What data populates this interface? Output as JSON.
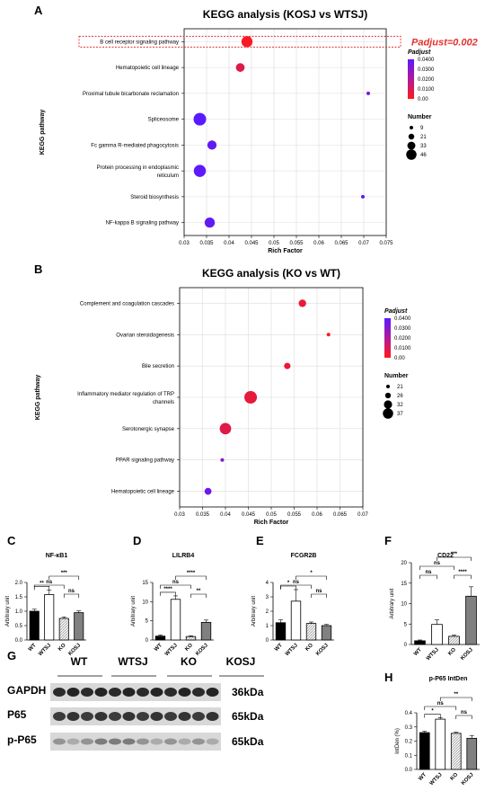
{
  "chart_data": [
    {
      "panel": "A",
      "type": "scatter",
      "title": "KEGG analysis (KOSJ vs WTSJ)",
      "xlabel": "Rich Factor",
      "ylabel": "KEGG pathway",
      "xlim": [
        0.03,
        0.075
      ],
      "xticks": [
        "0.03",
        "0.035",
        "0.04",
        "0.045",
        "0.05",
        "0.055",
        "0.06",
        "0.065",
        "0.07",
        "0.075"
      ],
      "annotation": "Padjust=0.002",
      "highlight": "B cell receptor signaling pathway",
      "color_legend_title": "Padjust",
      "color_ticks": [
        "0.0400",
        "0.0300",
        "0.0200",
        "0.0100",
        "0.00"
      ],
      "size_legend_title": "Number",
      "size_ticks": [
        9,
        21,
        33,
        46
      ],
      "size_range": [
        9,
        46
      ],
      "grid": true,
      "colors": {
        "low": "#ff1a1a",
        "high": "#5a1aff"
      },
      "pathways": [
        {
          "name": "B cell receptor signaling pathway",
          "x": 0.044,
          "padj": 0.002,
          "number": 40
        },
        {
          "name": "Hematopoietic cell lineage",
          "x": 0.0425,
          "padj": 0.008,
          "number": 30
        },
        {
          "name": "Proximal tubule bicarbonate reclamation",
          "x": 0.071,
          "padj": 0.035,
          "number": 9
        },
        {
          "name": "Spliceosome",
          "x": 0.0335,
          "padj": 0.04,
          "number": 46
        },
        {
          "name": "Fc gamma R-mediated phagocytosis",
          "x": 0.0362,
          "padj": 0.038,
          "number": 32
        },
        {
          "name": "Protein processing in endoplasmic reticulum",
          "x": 0.0335,
          "padj": 0.039,
          "number": 44
        },
        {
          "name": "Steroid biosynthesis",
          "x": 0.0698,
          "padj": 0.04,
          "number": 9
        },
        {
          "name": "NF-kappa B signaling pathway",
          "x": 0.0357,
          "padj": 0.038,
          "number": 36
        }
      ]
    },
    {
      "panel": "B",
      "type": "scatter",
      "title": "KEGG analysis (KO vs WT)",
      "xlabel": "Rich Factor",
      "ylabel": "KEGG pathway",
      "xlim": [
        0.03,
        0.07
      ],
      "xticks": [
        "0.03",
        "0.035",
        "0.04",
        "0.045",
        "0.05",
        "0.055",
        "0.06",
        "0.065",
        "0.07"
      ],
      "color_legend_title": "Padjust",
      "color_ticks": [
        "0.0400",
        "0.0300",
        "0.0200",
        "0.0100",
        "0.00"
      ],
      "size_legend_title": "Number",
      "size_ticks": [
        21,
        26,
        32,
        37
      ],
      "size_range": [
        21,
        37
      ],
      "grid": true,
      "colors": {
        "low": "#ff1a1a",
        "high": "#5a1aff"
      },
      "pathways": [
        {
          "name": "Complement and coagulation cascades",
          "x": 0.0568,
          "padj": 0.005,
          "number": 28
        },
        {
          "name": "Ovarian steroidogenesis",
          "x": 0.0625,
          "padj": 0.001,
          "number": 21
        },
        {
          "name": "Bile secretion",
          "x": 0.0535,
          "padj": 0.005,
          "number": 26
        },
        {
          "name": "Inflammatory mediator regulation of TRP channels",
          "x": 0.0455,
          "padj": 0.006,
          "number": 37
        },
        {
          "name": "Serotonergic synapse",
          "x": 0.04,
          "padj": 0.008,
          "number": 35
        },
        {
          "name": "PPAR signaling pathway",
          "x": 0.0393,
          "padj": 0.03,
          "number": 21
        },
        {
          "name": "Hematopoietic cell lineage",
          "x": 0.0362,
          "padj": 0.036,
          "number": 27
        }
      ]
    },
    {
      "panel": "C",
      "type": "bar",
      "title": "NF-κB1",
      "ylabel": "Arbitrary unit",
      "categories": [
        "WT",
        "WTSJ",
        "KO",
        "KOSJ"
      ],
      "values": [
        1.0,
        1.58,
        0.75,
        0.95
      ],
      "errors": [
        0.07,
        0.16,
        0.05,
        0.06
      ],
      "ylim": [
        0,
        2.0
      ],
      "yticks": [
        "0.0",
        "0.5",
        "1.0",
        "1.5",
        "2.0"
      ],
      "significance": [
        {
          "a": 0,
          "b": 1,
          "label": "**",
          "level": 0
        },
        {
          "a": 2,
          "b": 3,
          "label": "ns",
          "level": 0
        },
        {
          "a": 0,
          "b": 2,
          "label": "ns",
          "level": 1
        },
        {
          "a": 1,
          "b": 3,
          "label": "***",
          "level": 2
        }
      ]
    },
    {
      "panel": "D",
      "type": "bar",
      "title": "LILRB4",
      "ylabel": "Arbitrary unit",
      "categories": [
        "WT",
        "WTSJ",
        "KO",
        "KOSJ"
      ],
      "values": [
        1.0,
        10.6,
        0.9,
        4.6
      ],
      "errors": [
        0.3,
        0.9,
        0.2,
        0.6
      ],
      "ylim": [
        0,
        15
      ],
      "yticks": [
        "0",
        "5",
        "10",
        "15"
      ],
      "significance": [
        {
          "a": 0,
          "b": 1,
          "label": "****",
          "level": 0
        },
        {
          "a": 2,
          "b": 3,
          "label": "**",
          "level": 0
        },
        {
          "a": 0,
          "b": 2,
          "label": "ns",
          "level": 1
        },
        {
          "a": 1,
          "b": 3,
          "label": "****",
          "level": 2
        }
      ]
    },
    {
      "panel": "E",
      "type": "bar",
      "title": "FCGR2B",
      "ylabel": "Arbitrary unit",
      "categories": [
        "WT",
        "WTSJ",
        "KO",
        "KOSJ"
      ],
      "values": [
        1.2,
        2.7,
        1.15,
        1.0
      ],
      "errors": [
        0.2,
        0.8,
        0.1,
        0.08
      ],
      "ylim": [
        0,
        4
      ],
      "yticks": [
        "0",
        "1",
        "2",
        "3",
        "4"
      ],
      "significance": [
        {
          "a": 0,
          "b": 1,
          "label": "*",
          "level": 0
        },
        {
          "a": 2,
          "b": 3,
          "label": "ns",
          "level": 0
        },
        {
          "a": 0,
          "b": 2,
          "label": "ns",
          "level": 1
        },
        {
          "a": 1,
          "b": 3,
          "label": "*",
          "level": 2
        }
      ]
    },
    {
      "panel": "F",
      "type": "bar",
      "title": "CD22",
      "ylabel": "Arbitrary unit",
      "categories": [
        "WT",
        "WTSJ",
        "KO",
        "KOSJ"
      ],
      "values": [
        0.9,
        4.9,
        2.0,
        11.8
      ],
      "errors": [
        0.2,
        1.1,
        0.3,
        2.3
      ],
      "ylim": [
        0,
        20
      ],
      "yticks": [
        "0",
        "5",
        "10",
        "15",
        "20"
      ],
      "significance": [
        {
          "a": 0,
          "b": 1,
          "label": "ns",
          "level": 0
        },
        {
          "a": 2,
          "b": 3,
          "label": "****",
          "level": 0
        },
        {
          "a": 0,
          "b": 2,
          "label": "ns",
          "level": 1
        },
        {
          "a": 1,
          "b": 3,
          "label": "***",
          "level": 2
        }
      ]
    },
    {
      "panel": "H",
      "type": "bar",
      "title": "p-P65 IntDen",
      "ylabel": "IntDen (%)",
      "categories": [
        "WT",
        "WTSJ",
        "KO",
        "KOSJ"
      ],
      "values": [
        0.26,
        0.355,
        0.255,
        0.22
      ],
      "errors": [
        0.01,
        0.01,
        0.008,
        0.02
      ],
      "ylim": [
        0,
        0.4
      ],
      "yticks": [
        "0.0",
        "0.1",
        "0.2",
        "0.3",
        "0.4"
      ],
      "significance": [
        {
          "a": 0,
          "b": 1,
          "label": "*",
          "level": 0
        },
        {
          "a": 2,
          "b": 3,
          "label": "ns",
          "level": 0
        },
        {
          "a": 0,
          "b": 2,
          "label": "ns",
          "level": 1
        },
        {
          "a": 1,
          "b": 3,
          "label": "**",
          "level": 2
        }
      ]
    }
  ],
  "panel_letters": {
    "A": "A",
    "B": "B",
    "C": "C",
    "D": "D",
    "E": "E",
    "F": "F",
    "G": "G",
    "H": "H"
  },
  "western_blot": {
    "groups": [
      "WT",
      "WTSJ",
      "KO",
      "KOSJ"
    ],
    "rows": [
      {
        "name": "GAPDH",
        "kda": "36kDa"
      },
      {
        "name": "P65",
        "kda": "65kDa"
      },
      {
        "name": "p-P65",
        "kda": "65kDa"
      }
    ]
  }
}
